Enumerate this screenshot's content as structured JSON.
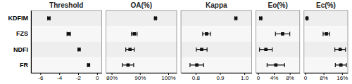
{
  "chart_data": [
    {
      "type": "dot",
      "title": "Threshold",
      "categories": [
        "KDFIM",
        "FZS",
        "NDFI",
        "FR"
      ],
      "values": [
        -5.1,
        -3.0,
        -1.9,
        -0.9
      ],
      "errors": [
        0.12,
        0.18,
        0.1,
        0.08
      ],
      "color": "#111111",
      "marker": "square",
      "xlim": [
        -7.0,
        0.5
      ],
      "xticks": [
        -6,
        -4,
        -2,
        0
      ],
      "grid": false
    },
    {
      "type": "dot",
      "title": "OA(%)",
      "categories": [
        "KDFIM",
        "FZS",
        "NDFI",
        "FR"
      ],
      "values": [
        95.5,
        88.0,
        86.5,
        85.8
      ],
      "errors": [
        0.3,
        1.0,
        1.5,
        2.0
      ],
      "color": "#111111",
      "marker": "square",
      "xlim": [
        78,
        103
      ],
      "xticks": [
        {
          "value": 80,
          "label": "80%"
        },
        {
          "value": 90,
          "label": "90%"
        },
        {
          "value": 100,
          "label": "100%"
        }
      ],
      "grid": false,
      "tick_labels": "x"
    },
    {
      "type": "dot",
      "title": "Kappa",
      "categories": [
        "KDFIM",
        "FZS",
        "NDFI",
        "FR"
      ],
      "values": [
        0.965,
        0.845,
        0.825,
        0.805
      ],
      "errors": [
        0.004,
        0.016,
        0.022,
        0.028
      ],
      "color": "#111111",
      "marker": "square",
      "xlim": [
        0.74,
        1.03
      ],
      "xticks": [
        0.8,
        0.9,
        {
          "value": 1.0,
          "label": "1.0"
        }
      ],
      "grid": false,
      "tick_labels": "x"
    },
    {
      "type": "dot",
      "title": "Eo(%)",
      "categories": [
        "KDFIM",
        "FZS",
        "NDFI",
        "FR"
      ],
      "values": [
        0.7,
        6.2,
        2.0,
        4.5
      ],
      "errors": [
        0.25,
        1.8,
        1.6,
        2.2
      ],
      "color": "#111111",
      "marker": "square",
      "xlim": [
        -0.5,
        10.5
      ],
      "xticks": [
        0,
        {
          "value": 4,
          "label": "4%"
        },
        {
          "value": 8,
          "label": "8%"
        }
      ],
      "grid": false,
      "tick_labels": "x"
    },
    {
      "type": "dot",
      "title": "Ec(%)",
      "categories": [
        "KDFIM",
        "FZS",
        "NDFI",
        "FR"
      ],
      "values": [
        0.8,
        9.2,
        15.2,
        15.5
      ],
      "errors": [
        0.2,
        1.4,
        2.3,
        2.4
      ],
      "color": "#111111",
      "marker": "square",
      "xlim": [
        -0.5,
        18.5
      ],
      "xticks": [
        0,
        {
          "value": 8,
          "label": "8%"
        },
        {
          "value": 16,
          "label": "16%"
        }
      ],
      "grid": false,
      "tick_labels": "x"
    }
  ]
}
